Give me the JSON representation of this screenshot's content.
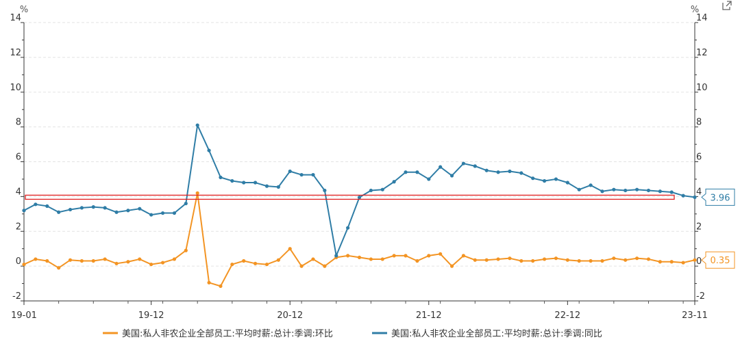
{
  "chart_data": {
    "type": "line",
    "left_unit": "%",
    "right_unit": "%",
    "ylim": [
      -2,
      14
    ],
    "y_ticks": [
      "-2",
      "0",
      "2",
      "4",
      "6",
      "8",
      "10",
      "12",
      "14"
    ],
    "x_ticks": [
      "19-01",
      "19-12",
      "20-12",
      "21-12",
      "22-12",
      "23-11"
    ],
    "x_tick_positions": [
      0,
      11,
      23,
      35,
      47,
      58
    ],
    "grid": "horizontal-dashed",
    "legend_position": "bottom",
    "x": [
      "19-01",
      "19-02",
      "19-03",
      "19-04",
      "19-05",
      "19-06",
      "19-07",
      "19-08",
      "19-09",
      "19-10",
      "19-11",
      "19-12",
      "20-01",
      "20-02",
      "20-03",
      "20-04",
      "20-05",
      "20-06",
      "20-07",
      "20-08",
      "20-09",
      "20-10",
      "20-11",
      "20-12",
      "21-01",
      "21-02",
      "21-03",
      "21-04",
      "21-05",
      "21-06",
      "21-07",
      "21-08",
      "21-09",
      "21-10",
      "21-11",
      "21-12",
      "22-01",
      "22-02",
      "22-03",
      "22-04",
      "22-05",
      "22-06",
      "22-07",
      "22-08",
      "22-09",
      "22-10",
      "22-11",
      "22-12",
      "23-01",
      "23-02",
      "23-03",
      "23-04",
      "23-05",
      "23-06",
      "23-07",
      "23-08",
      "23-09",
      "23-10",
      "23-11"
    ],
    "series": [
      {
        "name": "美国:私人非农企业全部员工:平均时薪:总计:季调:环比",
        "color": "#f39423",
        "last_value_label": "0.35",
        "values": [
          0.1,
          0.4,
          0.3,
          -0.1,
          0.35,
          0.3,
          0.3,
          0.4,
          0.15,
          0.25,
          0.4,
          0.1,
          0.2,
          0.4,
          0.9,
          4.2,
          -0.95,
          -1.15,
          0.1,
          0.3,
          0.15,
          0.1,
          0.35,
          1.0,
          0.0,
          0.4,
          0.0,
          0.5,
          0.6,
          0.5,
          0.4,
          0.4,
          0.6,
          0.6,
          0.3,
          0.6,
          0.7,
          0.0,
          0.6,
          0.35,
          0.35,
          0.4,
          0.45,
          0.3,
          0.3,
          0.4,
          0.45,
          0.35,
          0.3,
          0.3,
          0.3,
          0.45,
          0.35,
          0.45,
          0.4,
          0.25,
          0.25,
          0.2,
          0.35
        ]
      },
      {
        "name": "美国:私人非农企业全部员工:平均时薪:总计:季调:同比",
        "color": "#2f7da6",
        "last_value_label": "3.96",
        "values": [
          3.2,
          3.55,
          3.45,
          3.1,
          3.25,
          3.35,
          3.4,
          3.35,
          3.1,
          3.2,
          3.3,
          2.95,
          3.05,
          3.05,
          3.6,
          8.1,
          6.65,
          5.1,
          4.9,
          4.8,
          4.8,
          4.6,
          4.55,
          5.45,
          5.25,
          5.25,
          4.35,
          0.6,
          2.2,
          3.95,
          4.35,
          4.4,
          4.85,
          5.4,
          5.4,
          5.0,
          5.7,
          5.2,
          5.9,
          5.75,
          5.5,
          5.4,
          5.45,
          5.35,
          5.05,
          4.9,
          5.0,
          4.8,
          4.4,
          4.65,
          4.3,
          4.4,
          4.35,
          4.4,
          4.35,
          4.3,
          4.25,
          4.05,
          3.96
        ]
      }
    ],
    "highlight": {
      "y": 3.96,
      "color": "#e02020"
    }
  }
}
